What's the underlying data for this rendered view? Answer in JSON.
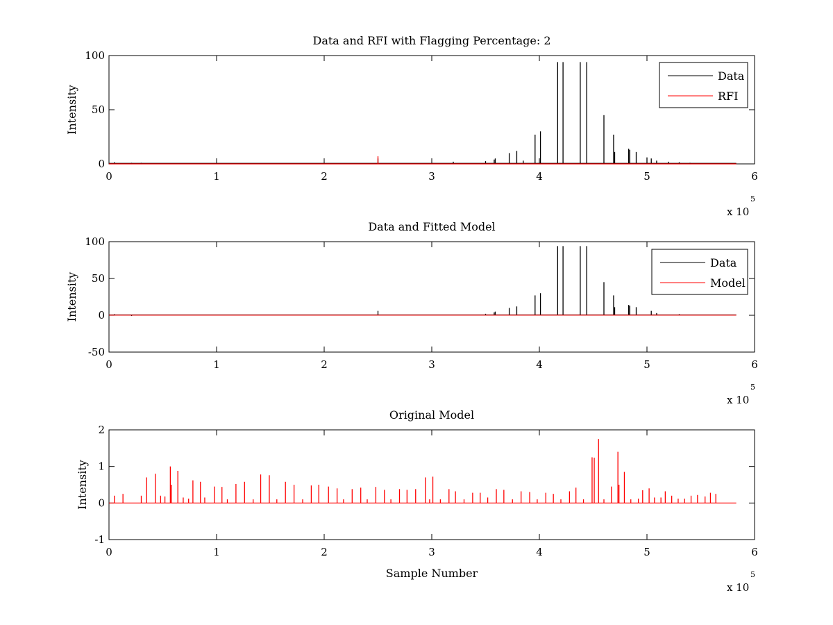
{
  "chart_data": [
    {
      "type": "line",
      "title": "Data and RFI with Flagging Percentage: 2",
      "xlabel": "",
      "ylabel": "Intensity",
      "xlim": [
        0,
        600000
      ],
      "ylim": [
        0,
        100
      ],
      "xticks": [
        0,
        1,
        2,
        3,
        4,
        5,
        6
      ],
      "yticks": [
        0,
        50,
        100
      ],
      "x_multiplier": {
        "prefix": "x 10",
        "exponent": "5"
      },
      "legend": {
        "position": "top-right",
        "entries": [
          "Data",
          "RFI"
        ]
      },
      "grid": false,
      "series": [
        {
          "name": "Data",
          "color": "#000000",
          "baseline": 0.5,
          "x": [
            5000,
            21000,
            28000,
            30000,
            250000,
            320000,
            350000,
            358000,
            359000,
            372000,
            379000,
            385000,
            396000,
            401000,
            417000,
            422000,
            438000,
            444000,
            460000,
            469000,
            470000,
            483000,
            484000,
            490000,
            500000,
            504000,
            509000,
            520000,
            530000,
            540000
          ],
          "y": [
            1.5,
            1,
            0.5,
            1,
            5,
            2,
            2.5,
            4,
            5,
            10,
            12,
            3,
            27,
            30,
            94,
            94,
            94,
            94,
            45,
            27,
            11,
            14,
            13,
            11,
            6,
            5,
            3,
            2,
            1.5,
            1
          ]
        },
        {
          "name": "RFI",
          "color": "#ff0000",
          "baseline": 0,
          "x": [
            250000
          ],
          "y": [
            7
          ]
        }
      ]
    },
    {
      "type": "line",
      "title": "Data and Fitted Model",
      "xlabel": "",
      "ylabel": "Intensity",
      "xlim": [
        0,
        600000
      ],
      "ylim": [
        -50,
        100
      ],
      "xticks": [
        0,
        1,
        2,
        3,
        4,
        5,
        6
      ],
      "yticks": [
        -50,
        0,
        50,
        100
      ],
      "x_multiplier": {
        "prefix": "x 10",
        "exponent": "5"
      },
      "legend": {
        "position": "top-right",
        "entries": [
          "Data",
          "Model"
        ]
      },
      "grid": false,
      "series": [
        {
          "name": "Data",
          "color": "#000000",
          "baseline": 0.5,
          "x": [
            5000,
            21000,
            250000,
            350000,
            358000,
            359000,
            372000,
            379000,
            396000,
            401000,
            417000,
            422000,
            438000,
            444000,
            460000,
            469000,
            470000,
            483000,
            484000,
            490000,
            504000,
            509000,
            530000
          ],
          "y": [
            1.5,
            -1,
            6,
            2,
            4,
            5,
            10,
            12,
            27,
            30,
            94,
            94,
            94,
            94,
            45,
            27,
            11,
            14,
            13,
            11,
            6,
            3,
            1.5
          ]
        },
        {
          "name": "Model",
          "color": "#ff0000",
          "baseline": 0.2,
          "x": [],
          "y": []
        }
      ]
    },
    {
      "type": "line",
      "title": "Original Model",
      "xlabel": "Sample Number",
      "ylabel": "Intensity",
      "xlim": [
        0,
        600000
      ],
      "ylim": [
        -1,
        2
      ],
      "xticks": [
        0,
        1,
        2,
        3,
        4,
        5,
        6
      ],
      "yticks": [
        -1,
        0,
        1,
        2
      ],
      "x_multiplier": {
        "prefix": "x 10",
        "exponent": "5"
      },
      "legend": null,
      "grid": false,
      "series": [
        {
          "name": "",
          "color": "#ff0000",
          "baseline": 0,
          "x": [
            5000,
            13000,
            30000,
            35000,
            43000,
            48000,
            52000,
            57000,
            58000,
            64000,
            69000,
            74000,
            78000,
            85000,
            89000,
            98000,
            105000,
            110000,
            118000,
            126000,
            134000,
            141000,
            149000,
            156000,
            164000,
            172000,
            180000,
            188000,
            195000,
            204000,
            212000,
            218000,
            226000,
            234000,
            240000,
            248000,
            256000,
            262000,
            270000,
            277000,
            285000,
            294000,
            298000,
            301000,
            308000,
            316000,
            322000,
            330000,
            338000,
            345000,
            352000,
            360000,
            367000,
            375000,
            383000,
            391000,
            398000,
            406000,
            413000,
            420000,
            428000,
            434000,
            441000,
            449000,
            451000,
            455000,
            460000,
            467000,
            473000,
            474000,
            479000,
            485000,
            492000,
            496000,
            502000,
            507000,
            513000,
            517000,
            523000,
            529000,
            535000,
            541000,
            547000,
            554000,
            559000,
            564000
          ],
          "y": [
            0.2,
            0.25,
            0.2,
            0.7,
            0.8,
            0.2,
            0.18,
            1.0,
            0.5,
            0.88,
            0.15,
            0.12,
            0.62,
            0.58,
            0.15,
            0.45,
            0.44,
            0.1,
            0.52,
            0.58,
            0.1,
            0.78,
            0.76,
            0.1,
            0.58,
            0.5,
            0.1,
            0.48,
            0.5,
            0.45,
            0.4,
            0.1,
            0.38,
            0.42,
            0.1,
            0.44,
            0.36,
            0.1,
            0.38,
            0.36,
            0.38,
            0.7,
            0.1,
            0.72,
            0.1,
            0.38,
            0.32,
            0.1,
            0.28,
            0.28,
            0.15,
            0.38,
            0.36,
            0.1,
            0.32,
            0.3,
            0.1,
            0.28,
            0.25,
            0.1,
            0.32,
            0.42,
            0.1,
            1.25,
            1.24,
            1.75,
            0.1,
            0.45,
            1.4,
            0.5,
            0.85,
            0.1,
            0.12,
            0.35,
            0.4,
            0.15,
            0.15,
            0.32,
            0.2,
            0.12,
            0.12,
            0.2,
            0.22,
            0.18,
            0.28,
            0.25
          ]
        }
      ]
    }
  ]
}
